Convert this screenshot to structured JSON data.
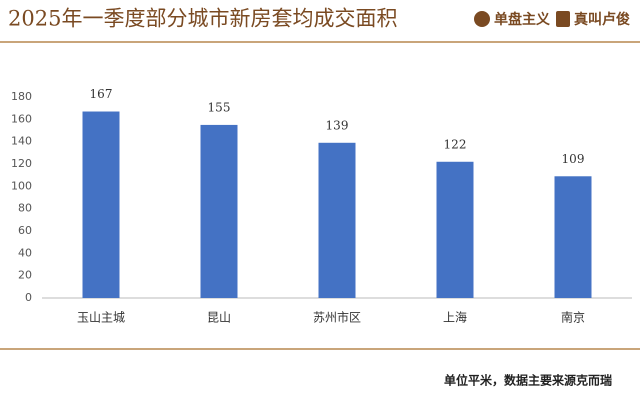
{
  "chart_data": {
    "type": "bar",
    "title": "2025年一季度部分城市新房套均成交面积",
    "brands": [
      "单盘主义",
      "真叫卢俊"
    ],
    "categories": [
      "玉山主城",
      "昆山",
      "苏州市区",
      "上海",
      "南京"
    ],
    "values": [
      167,
      155,
      139,
      122,
      109
    ],
    "color": "#4472c4",
    "ylim": [
      0,
      180
    ],
    "yticks": [
      0,
      20,
      40,
      60,
      80,
      100,
      120,
      140,
      160,
      180
    ],
    "grid": false,
    "footnote": "单位平米，数据主要来源克而瑞"
  }
}
